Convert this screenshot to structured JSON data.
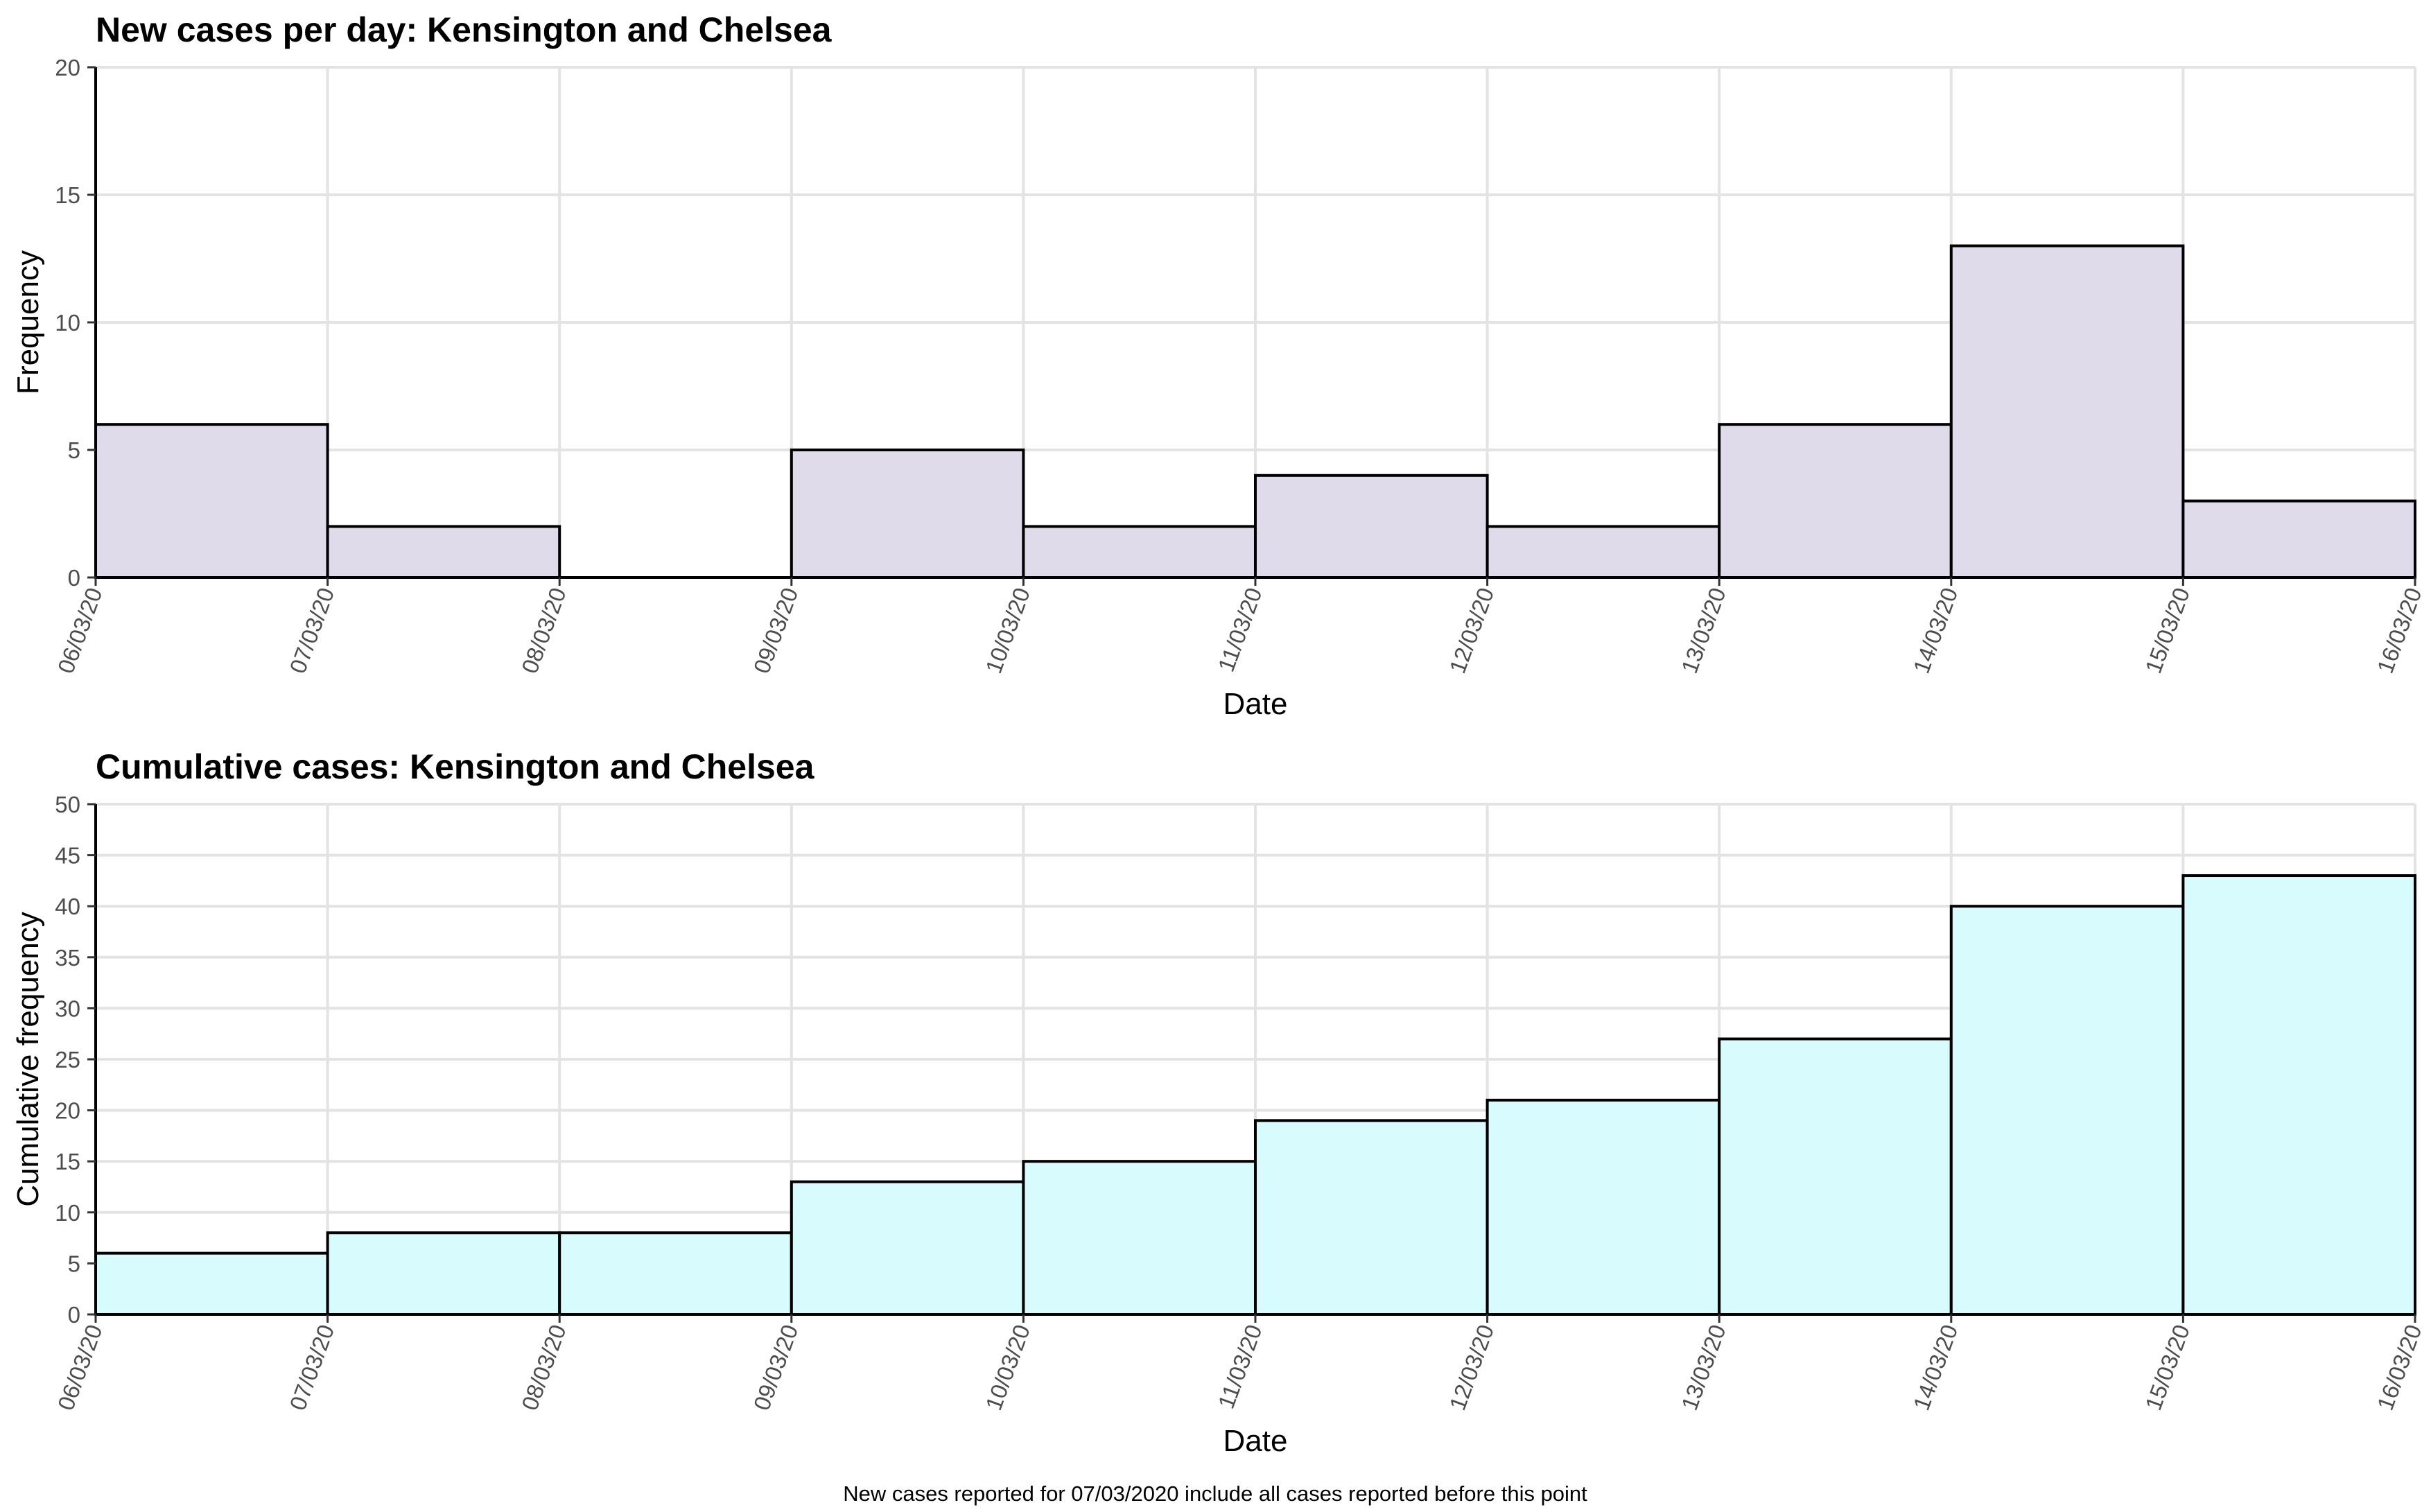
{
  "chart_data": [
    {
      "type": "bar",
      "title": "New cases per day: Kensington and Chelsea",
      "xlabel": "Date",
      "ylabel": "Frequency",
      "categories": [
        "06/03/20",
        "07/03/20",
        "08/03/20",
        "09/03/20",
        "10/03/20",
        "11/03/20",
        "12/03/20",
        "13/03/20",
        "14/03/20",
        "15/03/20"
      ],
      "x_tick_labels": [
        "06/03/20",
        "07/03/20",
        "08/03/20",
        "09/03/20",
        "10/03/20",
        "11/03/20",
        "12/03/20",
        "13/03/20",
        "14/03/20",
        "15/03/20",
        "16/03/20"
      ],
      "values": [
        6,
        2,
        0,
        5,
        2,
        4,
        2,
        6,
        13,
        3
      ],
      "ylim": [
        0,
        20
      ],
      "y_ticks": [
        0,
        5,
        10,
        15,
        20
      ],
      "grid": true,
      "bar_color": "#e0dbea"
    },
    {
      "type": "bar",
      "title": "Cumulative cases: Kensington and Chelsea",
      "xlabel": "Date",
      "ylabel": "Cumulative frequency",
      "categories": [
        "06/03/20",
        "07/03/20",
        "08/03/20",
        "09/03/20",
        "10/03/20",
        "11/03/20",
        "12/03/20",
        "13/03/20",
        "14/03/20",
        "15/03/20"
      ],
      "x_tick_labels": [
        "06/03/20",
        "07/03/20",
        "08/03/20",
        "09/03/20",
        "10/03/20",
        "11/03/20",
        "12/03/20",
        "13/03/20",
        "14/03/20",
        "15/03/20",
        "16/03/20"
      ],
      "values": [
        6,
        8,
        8,
        13,
        15,
        19,
        21,
        27,
        40,
        43
      ],
      "ylim": [
        0,
        50
      ],
      "y_ticks": [
        0,
        5,
        10,
        15,
        20,
        25,
        30,
        35,
        40,
        45,
        50
      ],
      "grid": true,
      "bar_color": "#d8fcfd"
    }
  ],
  "footnote": "New cases reported for 07/03/2020 include all cases reported before this point"
}
